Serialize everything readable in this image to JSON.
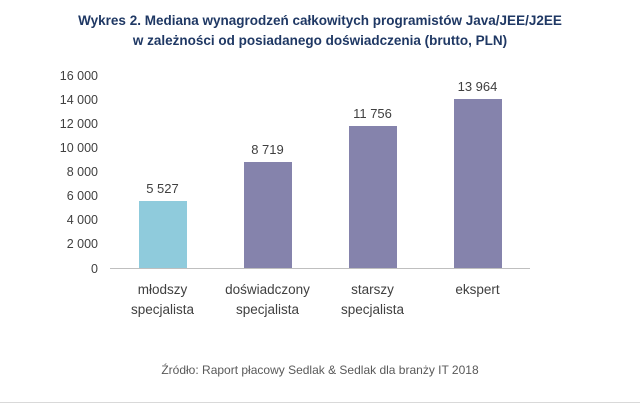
{
  "title_line1": "Wykres 2. Mediana wynagrodzeń całkowitych programistów Java/JEE/J2EE",
  "title_line2": "w zależności od posiadanego doświadczenia (brutto, PLN)",
  "source": "Źródło: Raport płacowy Sedlak & Sedlak dla branży IT 2018",
  "colors": {
    "title": "#1F3864",
    "bar_teal": "#8FCBDC",
    "bar_purple": "#8583AC",
    "axis_line": "#BFBFBF",
    "text": "#404040"
  },
  "chart_data": {
    "type": "bar",
    "title": "Wykres 2. Mediana wynagrodzeń całkowitych programistów Java/JEE/J2EE w zależności od posiadanego doświadczenia (brutto, PLN)",
    "categories": [
      "młodszy specjalista",
      "doświadczony specjalista",
      "starszy specjalista",
      "ekspert"
    ],
    "values": [
      5527,
      8719,
      11756,
      13964
    ],
    "value_labels": [
      "5 527",
      "8 719",
      "11 756",
      "13 964"
    ],
    "bar_colors": [
      "#8FCBDC",
      "#8583AC",
      "#8583AC",
      "#8583AC"
    ],
    "xlabel": "",
    "ylabel": "",
    "ylim": [
      0,
      16000
    ],
    "ytick_values": [
      0,
      2000,
      4000,
      6000,
      8000,
      10000,
      12000,
      14000,
      16000
    ],
    "ytick_labels": [
      "0",
      "2 000",
      "4 000",
      "6 000",
      "8 000",
      "10 000",
      "12 000",
      "14 000",
      "16 000"
    ],
    "grid": false,
    "legend": false,
    "legend_position": "none"
  }
}
